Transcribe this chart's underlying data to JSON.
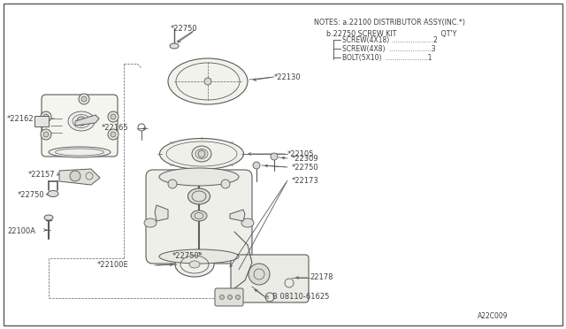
{
  "bg_color": "#ffffff",
  "line_color": "#5a5a5a",
  "text_color": "#404040",
  "title_line1": "NOTES: a.22100 DISTRIBUTOR ASSY(INC.*)",
  "title_line2": "b.22750 SCREW KIT                    QT'Y",
  "screw_items": [
    [
      "SCREW(4X18)",
      "....................2"
    ],
    [
      "SCREW(4X8) ",
      "....................3"
    ],
    [
      "BOLT(5X10) ",
      "....................1"
    ]
  ],
  "footer": "A22C009",
  "label_font_size": 6.0,
  "notes_font_size": 5.8
}
